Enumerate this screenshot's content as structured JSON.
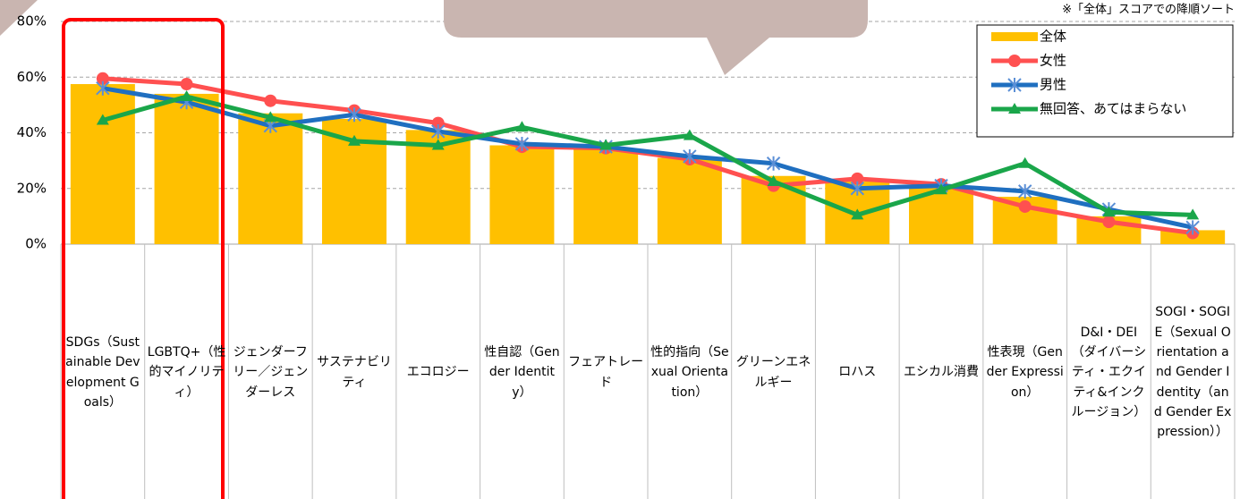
{
  "chart_data": {
    "type": "bar",
    "note": "※「全体」スコアでの降順ソート",
    "categories": [
      "SDGs（Sustainable Development Goals）",
      "LGBTQ+（性的マイノリティ）",
      "ジェンダーフリー／ジェンダーレス",
      "サステナビリティ",
      "エコロジー",
      "性自認（Gender Identity）",
      "フェアトレード",
      "性的指向（Sexual Orientation）",
      "グリーンエネルギー",
      "ロハス",
      "エシカル消費",
      "性表現（Gender Expression）",
      "D&I・DEI（ダイバーシティ・エクイティ&インクルージョン）",
      "SOGI・SOGIE（Sexual Orientation and Gender Identity（and Gender Expression））"
    ],
    "series": [
      {
        "name": "全体",
        "type": "bar",
        "color": "#ffc000",
        "values": [
          57.5,
          54,
          47,
          45,
          41,
          35.5,
          34,
          31,
          24.5,
          22.5,
          21,
          17,
          10,
          5
        ]
      },
      {
        "name": "女性",
        "type": "line",
        "marker": "circle",
        "color": "#ff5050",
        "values": [
          59.5,
          57.5,
          51.5,
          48,
          43.5,
          35,
          34.5,
          30.5,
          21,
          23.5,
          21.5,
          13.5,
          8,
          4
        ]
      },
      {
        "name": "男性",
        "type": "line",
        "marker": "asterisk",
        "color": "#1f6fc0",
        "values": [
          56,
          51,
          42.5,
          46.5,
          40.5,
          36,
          35,
          31.5,
          29,
          20,
          21,
          19,
          12.5,
          6
        ]
      },
      {
        "name": "無回答、あてはまらない",
        "type": "line",
        "marker": "triangle",
        "color": "#1aa64a",
        "values": [
          44.5,
          53,
          45.5,
          37,
          35.5,
          42,
          35.5,
          39,
          22.5,
          10.5,
          19.5,
          29,
          11.5,
          10.5
        ]
      }
    ],
    "ylim": [
      0,
      80
    ],
    "yticks": [
      {
        "value": 0,
        "label": "0%"
      },
      {
        "value": 20,
        "label": "20%"
      },
      {
        "value": 40,
        "label": "40%"
      },
      {
        "value": 60,
        "label": "60%"
      },
      {
        "value": 80,
        "label": "80%"
      }
    ],
    "grid": true,
    "legend": "top-right"
  }
}
